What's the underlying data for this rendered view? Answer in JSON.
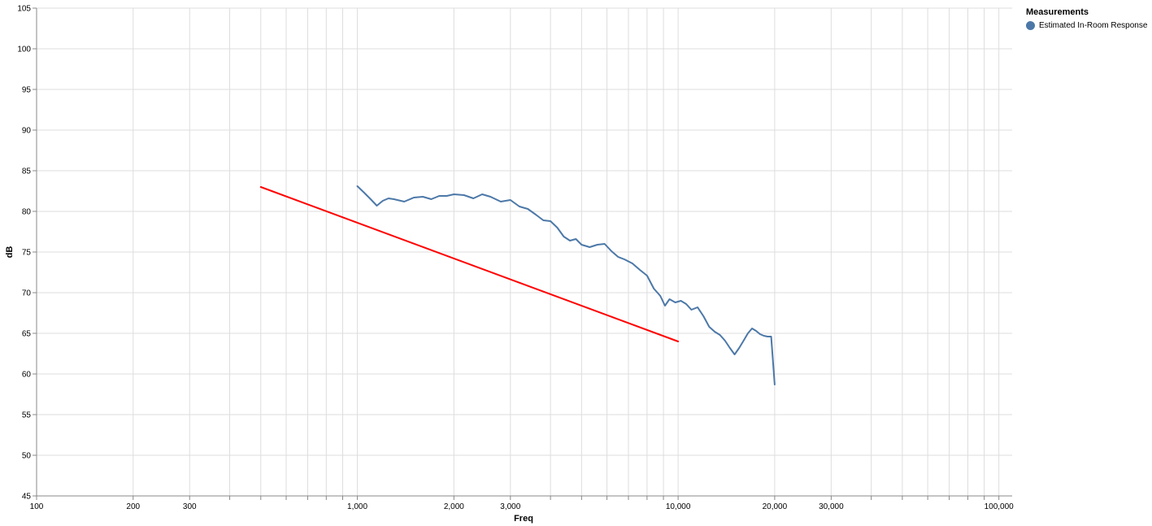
{
  "legend": {
    "title": "Measurements",
    "items": [
      {
        "label": "Estimated In-Room Response",
        "color": "#4c78a8"
      }
    ]
  },
  "chart_data": {
    "type": "line",
    "xlabel": "Freq",
    "ylabel": "dB",
    "x_scale": "log",
    "xlim": [
      100,
      110000
    ],
    "ylim": [
      45,
      105
    ],
    "grid": true,
    "legend_position": "top-right",
    "x_tick_labels": [
      "100",
      "200",
      "300",
      "1,000",
      "2,000",
      "3,000",
      "10,000",
      "20,000",
      "30,000",
      "100,000"
    ],
    "y_tick_labels": [
      "45",
      "50",
      "55",
      "60",
      "65",
      "70",
      "75",
      "80",
      "85",
      "90",
      "95",
      "100",
      "105"
    ],
    "series": [
      {
        "name": "Estimated In-Room Response",
        "color": "#4c78a8",
        "points": [
          [
            1000,
            83.1
          ],
          [
            1050,
            82.3
          ],
          [
            1100,
            81.5
          ],
          [
            1150,
            80.7
          ],
          [
            1200,
            81.3
          ],
          [
            1250,
            81.6
          ],
          [
            1300,
            81.5
          ],
          [
            1400,
            81.2
          ],
          [
            1500,
            81.7
          ],
          [
            1600,
            81.8
          ],
          [
            1700,
            81.5
          ],
          [
            1800,
            81.9
          ],
          [
            1900,
            81.9
          ],
          [
            2000,
            82.1
          ],
          [
            2150,
            82.0
          ],
          [
            2300,
            81.6
          ],
          [
            2450,
            82.1
          ],
          [
            2600,
            81.8
          ],
          [
            2800,
            81.2
          ],
          [
            3000,
            81.4
          ],
          [
            3200,
            80.6
          ],
          [
            3400,
            80.3
          ],
          [
            3600,
            79.6
          ],
          [
            3800,
            78.9
          ],
          [
            4000,
            78.8
          ],
          [
            4200,
            78.0
          ],
          [
            4400,
            76.9
          ],
          [
            4600,
            76.4
          ],
          [
            4800,
            76.6
          ],
          [
            5000,
            75.9
          ],
          [
            5300,
            75.6
          ],
          [
            5600,
            75.9
          ],
          [
            5900,
            76.0
          ],
          [
            6200,
            75.1
          ],
          [
            6500,
            74.4
          ],
          [
            6800,
            74.1
          ],
          [
            7200,
            73.6
          ],
          [
            7600,
            72.8
          ],
          [
            8000,
            72.1
          ],
          [
            8400,
            70.5
          ],
          [
            8800,
            69.6
          ],
          [
            9100,
            68.4
          ],
          [
            9400,
            69.2
          ],
          [
            9800,
            68.8
          ],
          [
            10200,
            69.0
          ],
          [
            10600,
            68.6
          ],
          [
            11000,
            67.9
          ],
          [
            11500,
            68.2
          ],
          [
            12000,
            67.1
          ],
          [
            12500,
            65.8
          ],
          [
            13000,
            65.2
          ],
          [
            13500,
            64.8
          ],
          [
            14000,
            64.1
          ],
          [
            14500,
            63.2
          ],
          [
            15000,
            62.4
          ],
          [
            15500,
            63.2
          ],
          [
            16000,
            64.1
          ],
          [
            16500,
            65.0
          ],
          [
            17000,
            65.6
          ],
          [
            17500,
            65.3
          ],
          [
            18000,
            64.9
          ],
          [
            18500,
            64.7
          ],
          [
            19000,
            64.6
          ],
          [
            19500,
            64.6
          ],
          [
            20000,
            58.7
          ]
        ]
      },
      {
        "color": "#ff0000",
        "points": [
          [
            500,
            83
          ],
          [
            10000,
            64
          ]
        ]
      }
    ]
  }
}
